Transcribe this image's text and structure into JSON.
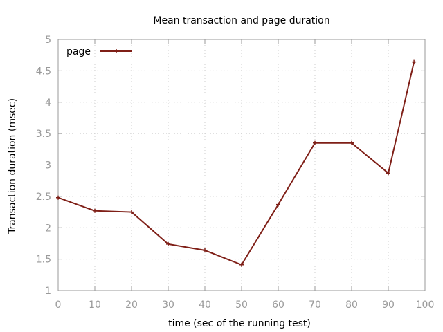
{
  "chart_data": {
    "type": "line",
    "title": "Mean transaction and page duration",
    "xlabel": "time (sec of the running test)",
    "ylabel": "Transaction duration (msec)",
    "xlim": [
      0,
      100
    ],
    "ylim": [
      1,
      5
    ],
    "x_ticks": [
      0,
      10,
      20,
      30,
      40,
      50,
      60,
      70,
      80,
      90,
      100
    ],
    "y_ticks": [
      1,
      1.5,
      2,
      2.5,
      3,
      3.5,
      4,
      4.5,
      5
    ],
    "grid": true,
    "legend_position": "top-left",
    "series": [
      {
        "name": "page",
        "color": "#7f1f17",
        "marker": "plus",
        "x": [
          0,
          10,
          20,
          30,
          40,
          50,
          60,
          70,
          80,
          90,
          97
        ],
        "y": [
          2.48,
          2.27,
          2.25,
          1.74,
          1.64,
          1.41,
          2.37,
          3.35,
          3.35,
          2.87,
          4.64
        ]
      }
    ]
  }
}
